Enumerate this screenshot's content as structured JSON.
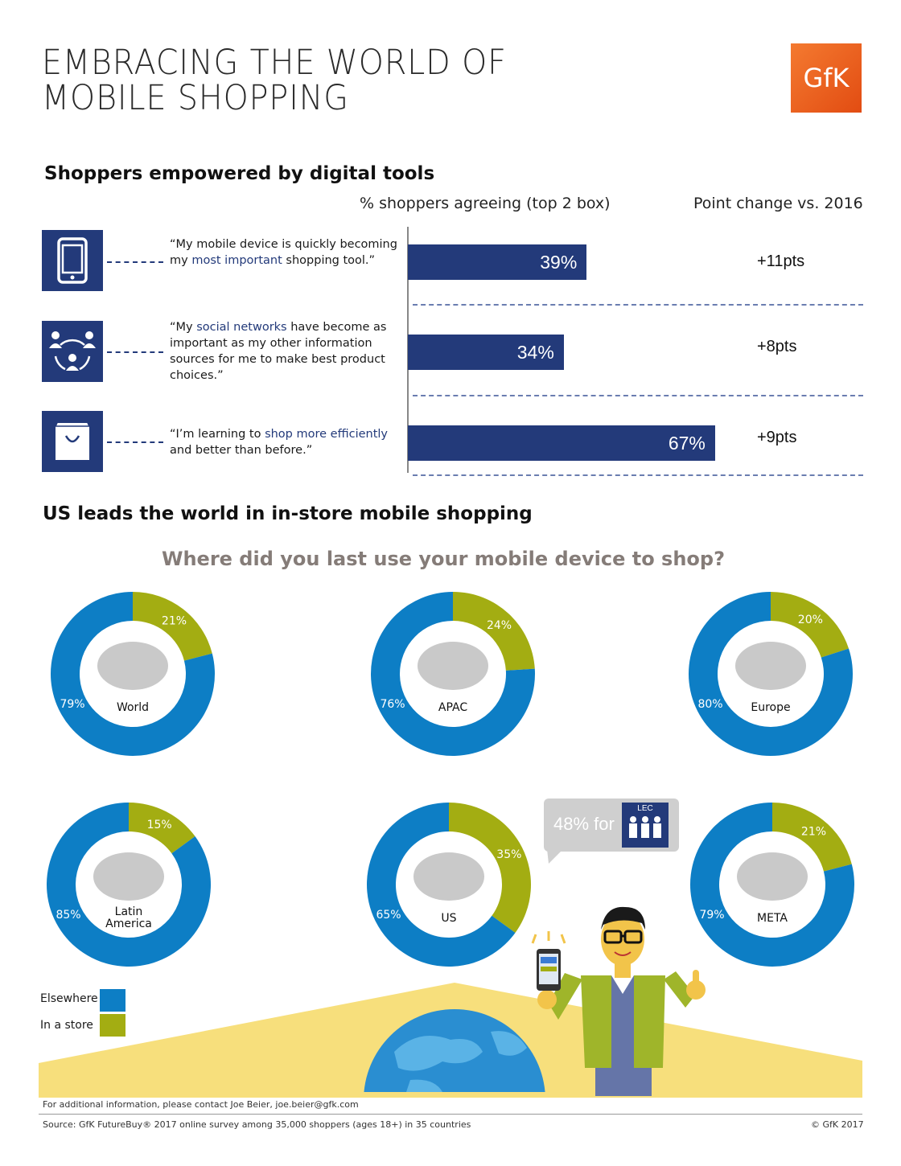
{
  "header": {
    "title_line1": "EMBRACING THE WORLD OF",
    "title_line2": "MOBILE SHOPPING",
    "logo_text": "GfK"
  },
  "section1": {
    "heading": "Shoppers empowered by digital tools",
    "col_header_pct": "% shoppers agreeing (top 2 box)",
    "col_header_change": "Point change vs. 2016",
    "items": [
      {
        "icon": "smartphone-icon",
        "quote_pre": "“My mobile device is quickly becoming my ",
        "quote_hl": "most important",
        "quote_post": " shopping tool.”"
      },
      {
        "icon": "social-network-icon",
        "quote_pre": "“My ",
        "quote_hl": "social networks",
        "quote_post": " have become as important as my other information sources for me to make best product choices.”"
      },
      {
        "icon": "shopping-bag-icon",
        "quote_pre": "“I’m learning to ",
        "quote_hl": "shop more efficiently",
        "quote_post": " and better than before.”"
      }
    ]
  },
  "section2": {
    "heading": "US leads the world in in-store mobile shopping",
    "question": "Where did you last use your mobile device to shop?",
    "callout_text": "48% for",
    "callout_badge": "LEC",
    "legend": {
      "elsewhere": "Elsewhere",
      "in_store": "In a store"
    }
  },
  "chart_data": [
    {
      "type": "bar",
      "title": "Shoppers empowered by digital tools",
      "xlabel": "% shoppers agreeing (top 2 box)",
      "categories": [
        "My mobile device is quickly becoming my most important shopping tool",
        "My social networks have become as important as my other information sources",
        "I'm learning to shop more efficiently and better than before"
      ],
      "values": [
        39,
        34,
        67
      ],
      "value_labels": [
        "39%",
        "34%",
        "67%"
      ],
      "point_change_labels": [
        "+11pts",
        "+8pts",
        "+9pts"
      ],
      "bar_color": "#233a7a"
    },
    {
      "type": "pie",
      "title": "Where did you last use your mobile device to shop?",
      "series_names": [
        "Elsewhere",
        "In a store"
      ],
      "colors": {
        "elsewhere": "#0d7ec5",
        "in_store": "#a3ad12"
      },
      "regions": [
        {
          "name": "World",
          "elsewhere": 79,
          "in_store": 21,
          "elsewhere_label": "79%",
          "in_store_label": "21%"
        },
        {
          "name": "APAC",
          "elsewhere": 76,
          "in_store": 24,
          "elsewhere_label": "76%",
          "in_store_label": "24%"
        },
        {
          "name": "Europe",
          "elsewhere": 80,
          "in_store": 20,
          "elsewhere_label": "80%",
          "in_store_label": "20%"
        },
        {
          "name": "Latin America",
          "elsewhere": 85,
          "in_store": 15,
          "elsewhere_label": "85%",
          "in_store_label": "15%"
        },
        {
          "name": "US",
          "elsewhere": 65,
          "in_store": 35,
          "elsewhere_label": "65%",
          "in_store_label": "35%"
        },
        {
          "name": "META",
          "elsewhere": 79,
          "in_store": 21,
          "elsewhere_label": "79%",
          "in_store_label": "21%"
        }
      ]
    }
  ],
  "footer": {
    "contact": "For additional information, please contact Joe Beier, joe.beier@gfk.com",
    "source": "Source: GfK FutureBuy® 2017 online survey among 35,000 shoppers (ages 18+) in 35 countries",
    "copyright": "© GfK 2017"
  }
}
